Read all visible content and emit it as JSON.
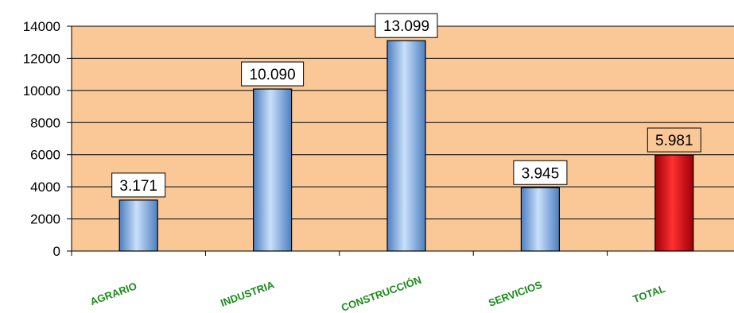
{
  "chart_data": {
    "type": "bar",
    "categories": [
      "AGRARIO",
      "INDUSTRIA",
      "CONSTRUCCIÓN",
      "SERVICIOS",
      "TOTAL"
    ],
    "values": [
      3171,
      10090,
      13099,
      3945,
      5981
    ],
    "data_labels": [
      "3.171",
      "10.090",
      "13.099",
      "3.945",
      "5.981"
    ],
    "ylim": [
      0,
      14000
    ],
    "yticks": [
      "0",
      "2000",
      "4000",
      "6000",
      "8000",
      "10000",
      "12000",
      "14000"
    ],
    "grid": true,
    "legend": "none",
    "colors": {
      "plot_background": "#f9c896",
      "bar": "#8fb9e8",
      "highlight_bar": "#e8000f",
      "category_text": "#1a8a1a"
    }
  }
}
